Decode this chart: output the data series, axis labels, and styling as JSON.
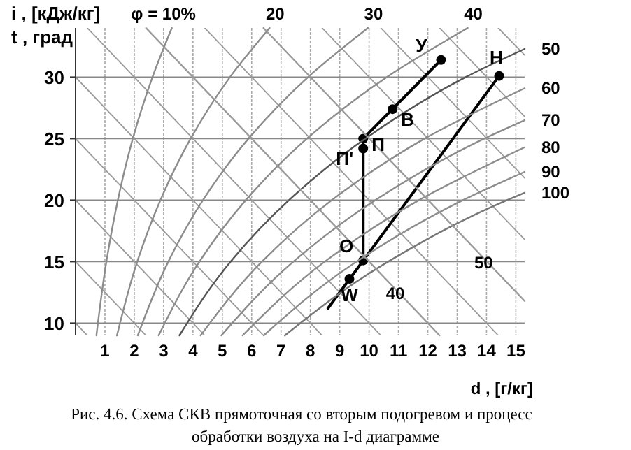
{
  "chart_data": {
    "type": "line",
    "ylabel": "i ,  [кДж/кг]\nt , град",
    "xlabel": "d , [г/кг]",
    "xlim": [
      0,
      15.3
    ],
    "ylim": [
      9,
      34
    ],
    "xticks": [
      1,
      2,
      3,
      4,
      5,
      6,
      7,
      8,
      9,
      10,
      11,
      12,
      13,
      14,
      15
    ],
    "yticks": [
      10,
      15,
      20,
      25,
      30
    ],
    "grid": true,
    "series": [
      {
        "name": "φ = 10%",
        "color": "#8c8c8c",
        "x": [
          0.71,
          1.05,
          1.44,
          1.95,
          2.62,
          3.28
        ],
        "values": [
          9,
          15,
          20,
          25,
          30,
          34
        ]
      },
      {
        "name": "20",
        "color": "#8c8c8c",
        "x": [
          1.41,
          2.1,
          2.89,
          3.92,
          5.26,
          6.61
        ],
        "values": [
          9,
          15,
          20,
          25,
          30,
          34
        ]
      },
      {
        "name": "30",
        "color": "#8c8c8c",
        "x": [
          2.12,
          3.16,
          4.34,
          5.89,
          7.92,
          9.96
        ],
        "values": [
          9,
          15,
          20,
          25,
          30,
          34
        ]
      },
      {
        "name": "40",
        "color": "#8c8c8c",
        "x": [
          2.83,
          4.22,
          5.8,
          7.88,
          10.6,
          13.36
        ],
        "values": [
          9,
          15,
          20,
          25,
          30,
          34
        ]
      },
      {
        "name": "50",
        "color": "#555555",
        "x": [
          3.54,
          5.28,
          7.27,
          9.87,
          13.29,
          15.3
        ],
        "values": [
          9,
          15,
          20,
          25,
          30,
          32.3
        ]
      },
      {
        "name": "60",
        "color": "#8c8c8c",
        "x": [
          4.26,
          6.35,
          8.73,
          11.89,
          15.3
        ],
        "values": [
          9,
          15,
          20,
          25,
          29.1
        ]
      },
      {
        "name": "70",
        "color": "#8c8c8c",
        "x": [
          4.97,
          7.42,
          10.21,
          13.92,
          15.3
        ],
        "values": [
          9,
          15,
          20,
          25,
          26.5
        ]
      },
      {
        "name": "80",
        "color": "#8c8c8c",
        "x": [
          5.69,
          8.49,
          11.7,
          15.3
        ],
        "values": [
          9,
          15,
          20,
          24.3
        ]
      },
      {
        "name": "90",
        "color": "#8c8c8c",
        "x": [
          6.41,
          9.57,
          13.2,
          15.3
        ],
        "values": [
          9,
          15,
          20,
          22.3
        ]
      },
      {
        "name": "100",
        "color": "#777777",
        "x": [
          7.13,
          10.65,
          14.7,
          15.3
        ],
        "values": [
          9,
          15,
          20,
          20.6
        ]
      },
      {
        "color": "#9a9a9a",
        "x": [
          0,
          0.4
        ],
        "values": [
          10,
          9
        ]
      },
      {
        "color": "#9a9a9a",
        "x": [
          0,
          2.4
        ],
        "values": [
          15,
          9
        ]
      },
      {
        "color": "#9a9a9a",
        "x": [
          0,
          4.4
        ],
        "values": [
          20,
          9
        ]
      },
      {
        "color": "#9a9a9a",
        "x": [
          0,
          6.4
        ],
        "values": [
          25,
          9
        ]
      },
      {
        "color": "#9a9a9a",
        "x": [
          0,
          8.4
        ],
        "values": [
          30,
          9
        ]
      },
      {
        "color": "#9a9a9a",
        "x": [
          0.4,
          10.4
        ],
        "values": [
          34,
          9
        ]
      },
      {
        "name": "40",
        "color": "#9a9a9a",
        "x": [
          2.4,
          12.4
        ],
        "values": [
          34,
          9
        ]
      },
      {
        "color": "#9a9a9a",
        "x": [
          4.4,
          14.4
        ],
        "values": [
          34,
          9
        ]
      },
      {
        "name": "50",
        "color": "#9a9a9a",
        "x": [
          6.4,
          15.3
        ],
        "values": [
          34,
          11.8
        ]
      },
      {
        "color": "#9a9a9a",
        "x": [
          8.4,
          15.3
        ],
        "values": [
          34,
          16.8
        ]
      },
      {
        "color": "#9a9a9a",
        "x": [
          10.4,
          15.3
        ],
        "values": [
          34,
          21.8
        ]
      },
      {
        "color": "#9a9a9a",
        "x": [
          12.4,
          15.3
        ],
        "values": [
          34,
          26.8
        ]
      },
      {
        "color": "#9a9a9a",
        "x": [
          14.4,
          15.3
        ],
        "values": [
          34,
          31.8
        ]
      },
      {
        "color": "#000000",
        "x": [
          8.6,
          14.43
        ],
        "values": [
          11.2,
          30.1
        ]
      },
      {
        "color": "#000000",
        "x": [
          9.8,
          9.8,
          12.45
        ],
        "values": [
          15.1,
          25.0,
          31.4
        ]
      },
      {
        "type": "scatter",
        "marker": "circle",
        "color": "#000000",
        "x": [
          12.45,
          14.43,
          10.8,
          9.8,
          9.8,
          9.8,
          9.33
        ],
        "values": [
          31.4,
          30.1,
          27.4,
          25.0,
          24.2,
          15.1,
          13.6
        ]
      }
    ],
    "annotations": [
      {
        "text": "У",
        "x": 12.45,
        "y": 31.4
      },
      {
        "text": "Н",
        "x": 14.43,
        "y": 30.1
      },
      {
        "text": "В",
        "x": 10.8,
        "y": 27.4
      },
      {
        "text": "П",
        "x": 9.8,
        "y": 25.0
      },
      {
        "text": "П'",
        "x": 9.8,
        "y": 24.2
      },
      {
        "text": "О",
        "x": 9.8,
        "y": 15.1
      },
      {
        "text": "W",
        "x": 9.33,
        "y": 13.6
      },
      "Рис. 4.6. Схема СКВ прямоточная со вторым подогревом и процесс\nобработки воздуха на I-d диаграмме"
    ]
  }
}
